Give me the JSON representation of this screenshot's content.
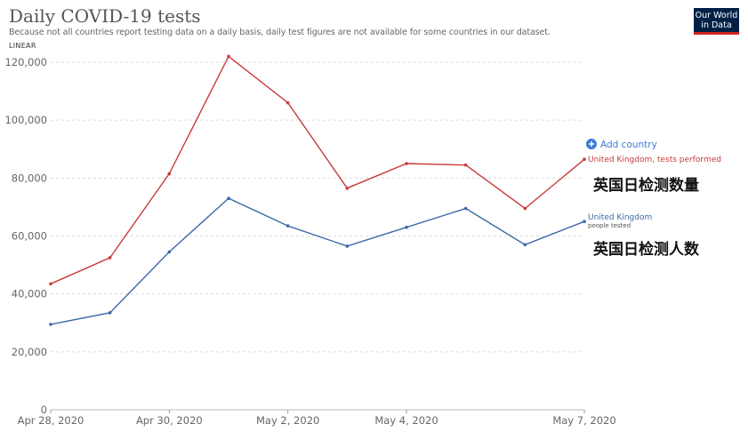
{
  "header": {
    "title": "Daily COVID-19 tests",
    "subtitle": "Because not all countries report testing data on a daily basis, daily test figures are not available for some countries in our dataset.",
    "scale": "LINEAR"
  },
  "logo": {
    "line1": "Our World",
    "line2": "in Data"
  },
  "controls": {
    "add_country": "Add country"
  },
  "annotations": {
    "tests_cn": "英国日检测数量",
    "people_cn": "英国日检测人数"
  },
  "colors": {
    "tests": "#c93a3a",
    "people": "#3a68a8",
    "grid": "#dddddd",
    "accent": "#3c7dd6"
  },
  "chart_data": {
    "type": "line",
    "title": "Daily COVID-19 tests",
    "x": [
      "2020-04-28",
      "2020-04-29",
      "2020-04-30",
      "2020-05-01",
      "2020-05-02",
      "2020-05-03",
      "2020-05-04",
      "2020-05-05",
      "2020-05-06",
      "2020-05-07"
    ],
    "x_tick_labels": [
      "Apr 28, 2020",
      "Apr 30, 2020",
      "May 2, 2020",
      "May 4, 2020",
      "May 7, 2020"
    ],
    "y_tick_labels": [
      "0",
      "20,000",
      "40,000",
      "60,000",
      "80,000",
      "100,000",
      "120,000"
    ],
    "ylim": [
      0,
      120000
    ],
    "grid": true,
    "series": [
      {
        "name": "United Kingdom, tests performed",
        "values": [
          43500,
          52500,
          81500,
          122000,
          106000,
          76500,
          85000,
          84500,
          69500,
          86500
        ]
      },
      {
        "name": "United Kingdom",
        "sublabel": "people tested",
        "values": [
          29500,
          33500,
          54500,
          73000,
          63500,
          56500,
          63000,
          69500,
          57000,
          65000
        ]
      }
    ]
  }
}
